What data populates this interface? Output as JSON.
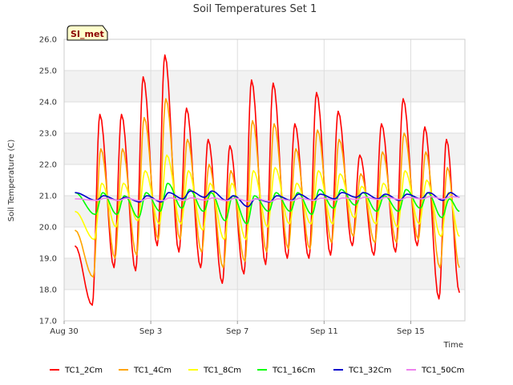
{
  "chart_data": {
    "type": "line",
    "title": "Soil Temperatures Set 1",
    "xlabel": "Time",
    "ylabel": "Soil Temperature (C)",
    "badge": "SI_met",
    "xlim": [
      "2023-08-30",
      "2023-09-17 12:00"
    ],
    "ylim": [
      17.0,
      26.0
    ],
    "x_ticks": [
      {
        "date": "2023-08-30",
        "label": "Aug 30"
      },
      {
        "date": "2023-09-03",
        "label": "Sep 3"
      },
      {
        "date": "2023-09-07",
        "label": "Sep 7"
      },
      {
        "date": "2023-09-11",
        "label": "Sep 11"
      },
      {
        "date": "2023-09-15",
        "label": "Sep 15"
      }
    ],
    "y_ticks": [
      "17.0",
      "18.0",
      "19.0",
      "20.0",
      "21.0",
      "22.0",
      "23.0",
      "24.0",
      "25.0",
      "26.0"
    ],
    "grid": true,
    "legend_position": "bottom",
    "daily_dates": [
      "2023-08-31",
      "2023-09-01",
      "2023-09-02",
      "2023-09-03",
      "2023-09-04",
      "2023-09-05",
      "2023-09-06",
      "2023-09-07",
      "2023-09-08",
      "2023-09-09",
      "2023-09-10",
      "2023-09-11",
      "2023-09-12",
      "2023-09-13",
      "2023-09-14",
      "2023-09-15",
      "2023-09-16"
    ],
    "series": [
      {
        "name": "TC1_2Cm",
        "color": "#ff0000",
        "start": 19.4,
        "end": 17.9,
        "daily_max": [
          23.6,
          23.6,
          24.8,
          25.5,
          23.8,
          22.8,
          22.6,
          24.7,
          24.6,
          23.3,
          24.3,
          23.7,
          22.3,
          23.3,
          24.1,
          23.2,
          22.8
        ],
        "daily_min": [
          17.5,
          18.7,
          18.6,
          19.4,
          19.2,
          18.7,
          18.2,
          18.5,
          18.8,
          19.0,
          19.0,
          19.1,
          19.4,
          19.1,
          19.2,
          19.4,
          17.7
        ]
      },
      {
        "name": "TC1_4Cm",
        "color": "#ffa500",
        "start": 19.9,
        "end": 18.7,
        "daily_max": [
          22.5,
          22.5,
          23.5,
          24.1,
          22.8,
          22.0,
          21.8,
          23.4,
          23.3,
          22.5,
          23.1,
          22.8,
          21.7,
          22.4,
          23.0,
          22.4,
          21.9
        ],
        "daily_min": [
          18.4,
          19.0,
          19.1,
          19.6,
          19.6,
          19.2,
          18.7,
          18.9,
          19.2,
          19.3,
          19.3,
          19.5,
          19.7,
          19.5,
          19.5,
          19.6,
          18.7
        ]
      },
      {
        "name": "TC1_8Cm",
        "color": "#ffff00",
        "start": 20.5,
        "end": 19.7,
        "daily_max": [
          21.4,
          21.4,
          21.8,
          22.3,
          21.8,
          21.4,
          21.4,
          21.8,
          21.9,
          21.4,
          21.8,
          21.7,
          21.3,
          21.4,
          21.8,
          21.5,
          21.1
        ],
        "daily_min": [
          19.6,
          20.0,
          20.2,
          20.1,
          20.1,
          19.9,
          19.6,
          19.6,
          20.0,
          20.1,
          20.1,
          20.1,
          20.3,
          20.1,
          20.0,
          20.1,
          19.7
        ]
      },
      {
        "name": "TC1_16Cm",
        "color": "#00ff00",
        "start": 21.1,
        "end": 20.5,
        "daily_max": [
          21.1,
          21.0,
          21.1,
          21.4,
          21.2,
          21.1,
          21.0,
          21.0,
          21.1,
          21.1,
          21.2,
          21.2,
          21.1,
          21.0,
          21.2,
          21.1,
          20.9
        ],
        "daily_min": [
          20.4,
          20.4,
          20.3,
          20.5,
          20.6,
          20.5,
          20.2,
          20.1,
          20.5,
          20.5,
          20.4,
          20.6,
          20.7,
          20.5,
          20.5,
          20.6,
          20.3
        ]
      },
      {
        "name": "TC1_32Cm",
        "color": "#0000cc",
        "start": 21.1,
        "end": 20.95,
        "daily_max": [
          21.0,
          20.95,
          21.0,
          21.1,
          21.15,
          21.15,
          21.0,
          20.9,
          21.0,
          21.05,
          21.05,
          21.1,
          21.1,
          21.05,
          21.05,
          21.1,
          21.1
        ],
        "daily_min": [
          20.85,
          20.85,
          20.8,
          20.8,
          20.9,
          20.95,
          20.85,
          20.65,
          20.8,
          20.85,
          20.85,
          20.9,
          20.95,
          20.9,
          20.85,
          20.9,
          20.85
        ]
      },
      {
        "name": "TC1_50Cm",
        "color": "#ee82ee",
        "start": 20.9,
        "end": 20.95,
        "daily_max": [
          20.92,
          20.92,
          20.92,
          20.93,
          20.93,
          20.93,
          20.92,
          20.9,
          20.9,
          20.92,
          20.92,
          20.93,
          20.95,
          20.95,
          20.95,
          20.97,
          20.97
        ],
        "daily_min": [
          20.85,
          20.85,
          20.84,
          20.84,
          20.85,
          20.86,
          20.84,
          20.82,
          20.82,
          20.84,
          20.85,
          20.86,
          20.88,
          20.88,
          20.88,
          20.9,
          20.9
        ]
      }
    ]
  }
}
